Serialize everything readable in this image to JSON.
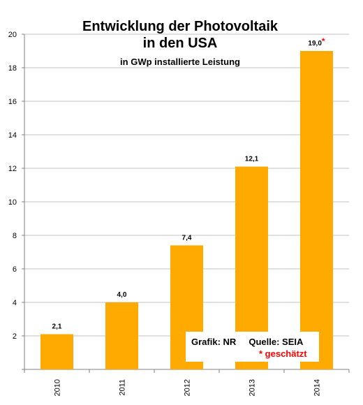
{
  "chart_data": {
    "type": "bar",
    "title": "Entwicklung der Photovoltaik",
    "title_line2": "in den USA",
    "subtitle": "in GWp installierte Leistung",
    "categories": [
      "2010",
      "2011",
      "2012",
      "2013",
      "2014"
    ],
    "values": [
      2.1,
      4.0,
      7.4,
      12.1,
      19.0
    ],
    "data_labels": [
      "2,1",
      "4,0",
      "7,4",
      "12,1",
      "19,0"
    ],
    "estimated_marker": "*",
    "ylim": [
      0,
      20
    ],
    "yticks": [
      2,
      4,
      6,
      8,
      10,
      12,
      14,
      16,
      18,
      20
    ],
    "grid": true,
    "bar_color": "#FFAA00",
    "marker_color": "#FF0000",
    "annotation": {
      "source": "Grafik: NR     Quelle: SEIA",
      "estimated_note": "* geschätzt"
    }
  }
}
